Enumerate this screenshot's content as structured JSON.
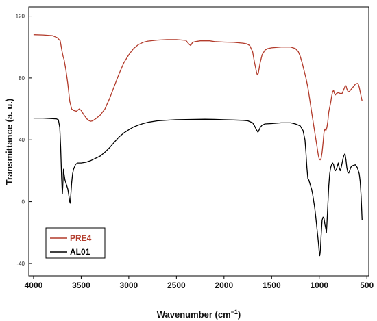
{
  "chart_data": {
    "type": "line",
    "title": "",
    "xlabel": "Wavenumber (cm",
    "xlabel_sup": "−1",
    "xlabel_close": ")",
    "ylabel": "Transmittance (a. u.)",
    "xlim": [
      4050,
      480
    ],
    "ylim": [
      -48,
      126
    ],
    "x_reversed": true,
    "x_ticks": [
      4000,
      3500,
      3000,
      2500,
      2000,
      1500,
      1000,
      500
    ],
    "x_tick_labels": [
      "4000",
      "3500",
      "3000",
      "2500",
      "2000",
      "1500",
      "1000",
      "500"
    ],
    "y_ticks": [
      -40,
      0,
      40,
      80,
      120
    ],
    "y_tick_labels": [
      "-40",
      "0",
      "40",
      "80",
      "120"
    ],
    "grid": false,
    "legend": {
      "position": "bottom-left"
    },
    "series": [
      {
        "name": "PRE4",
        "color": "#b23a2a",
        "points": [
          [
            4000,
            108
          ],
          [
            3900,
            107.8
          ],
          [
            3800,
            107.3
          ],
          [
            3750,
            106
          ],
          [
            3720,
            104
          ],
          [
            3700,
            97
          ],
          [
            3690,
            94
          ],
          [
            3680,
            92
          ],
          [
            3660,
            85
          ],
          [
            3640,
            76
          ],
          [
            3620,
            65
          ],
          [
            3600,
            60
          ],
          [
            3580,
            59
          ],
          [
            3550,
            58.5
          ],
          [
            3520,
            60
          ],
          [
            3500,
            59
          ],
          [
            3470,
            56
          ],
          [
            3440,
            53.5
          ],
          [
            3420,
            52.5
          ],
          [
            3400,
            52
          ],
          [
            3380,
            52.3
          ],
          [
            3350,
            53.5
          ],
          [
            3300,
            56
          ],
          [
            3250,
            60
          ],
          [
            3200,
            67
          ],
          [
            3150,
            75
          ],
          [
            3100,
            83
          ],
          [
            3050,
            90
          ],
          [
            3000,
            95
          ],
          [
            2950,
            99
          ],
          [
            2900,
            101.5
          ],
          [
            2850,
            103
          ],
          [
            2800,
            103.8
          ],
          [
            2700,
            104.5
          ],
          [
            2600,
            104.8
          ],
          [
            2500,
            104.8
          ],
          [
            2400,
            104.3
          ],
          [
            2370,
            102
          ],
          [
            2350,
            101
          ],
          [
            2330,
            103
          ],
          [
            2300,
            103.5
          ],
          [
            2250,
            104
          ],
          [
            2200,
            104
          ],
          [
            2150,
            104
          ],
          [
            2100,
            103.5
          ],
          [
            2000,
            103.2
          ],
          [
            1900,
            103
          ],
          [
            1800,
            102.5
          ],
          [
            1760,
            102
          ],
          [
            1730,
            101
          ],
          [
            1700,
            97
          ],
          [
            1680,
            90
          ],
          [
            1660,
            84
          ],
          [
            1650,
            82
          ],
          [
            1640,
            83
          ],
          [
            1620,
            90
          ],
          [
            1600,
            95
          ],
          [
            1570,
            98
          ],
          [
            1540,
            99
          ],
          [
            1500,
            99.5
          ],
          [
            1400,
            100
          ],
          [
            1300,
            100
          ],
          [
            1250,
            99
          ],
          [
            1220,
            97
          ],
          [
            1200,
            94
          ],
          [
            1180,
            90
          ],
          [
            1160,
            85
          ],
          [
            1140,
            80
          ],
          [
            1120,
            74
          ],
          [
            1100,
            66
          ],
          [
            1080,
            58
          ],
          [
            1060,
            50
          ],
          [
            1040,
            42
          ],
          [
            1020,
            34
          ],
          [
            1010,
            30
          ],
          [
            1000,
            27.5
          ],
          [
            990,
            27
          ],
          [
            980,
            28
          ],
          [
            970,
            32
          ],
          [
            960,
            38
          ],
          [
            950,
            45
          ],
          [
            940,
            47
          ],
          [
            930,
            46
          ],
          [
            920,
            48
          ],
          [
            910,
            52
          ],
          [
            900,
            58
          ],
          [
            880,
            64
          ],
          [
            870,
            68
          ],
          [
            860,
            71
          ],
          [
            850,
            72
          ],
          [
            840,
            70
          ],
          [
            830,
            69
          ],
          [
            820,
            70
          ],
          [
            800,
            70.5
          ],
          [
            780,
            70
          ],
          [
            760,
            70
          ],
          [
            750,
            71.5
          ],
          [
            740,
            73
          ],
          [
            730,
            74.5
          ],
          [
            720,
            75
          ],
          [
            710,
            73
          ],
          [
            700,
            71.5
          ],
          [
            690,
            71
          ],
          [
            680,
            71.5
          ],
          [
            660,
            73
          ],
          [
            640,
            74.5
          ],
          [
            620,
            76
          ],
          [
            600,
            76.5
          ],
          [
            590,
            76
          ],
          [
            580,
            74
          ],
          [
            570,
            71
          ],
          [
            560,
            68
          ],
          [
            550,
            65
          ]
        ]
      },
      {
        "name": "AL01",
        "color": "#000000",
        "points": [
          [
            4000,
            54
          ],
          [
            3900,
            54
          ],
          [
            3800,
            53.7
          ],
          [
            3760,
            53.5
          ],
          [
            3740,
            53
          ],
          [
            3725,
            48
          ],
          [
            3715,
            35
          ],
          [
            3705,
            15
          ],
          [
            3700,
            8
          ],
          [
            3697,
            5
          ],
          [
            3693,
            10
          ],
          [
            3688,
            18
          ],
          [
            3685,
            21
          ],
          [
            3680,
            18
          ],
          [
            3670,
            14
          ],
          [
            3660,
            12
          ],
          [
            3650,
            10
          ],
          [
            3640,
            8
          ],
          [
            3630,
            4
          ],
          [
            3620,
            0
          ],
          [
            3615,
            -1
          ],
          [
            3610,
            3
          ],
          [
            3600,
            12
          ],
          [
            3590,
            18
          ],
          [
            3580,
            21
          ],
          [
            3560,
            24
          ],
          [
            3540,
            25
          ],
          [
            3500,
            25
          ],
          [
            3450,
            25.5
          ],
          [
            3400,
            26.5
          ],
          [
            3350,
            28
          ],
          [
            3300,
            29.5
          ],
          [
            3250,
            32
          ],
          [
            3200,
            35
          ],
          [
            3150,
            38.5
          ],
          [
            3100,
            42
          ],
          [
            3050,
            44.5
          ],
          [
            3000,
            46.5
          ],
          [
            2950,
            48.3
          ],
          [
            2900,
            49.5
          ],
          [
            2850,
            50.5
          ],
          [
            2800,
            51.3
          ],
          [
            2700,
            52.3
          ],
          [
            2600,
            52.7
          ],
          [
            2500,
            53
          ],
          [
            2400,
            53.1
          ],
          [
            2300,
            53.2
          ],
          [
            2200,
            53.3
          ],
          [
            2100,
            53.2
          ],
          [
            2000,
            53
          ],
          [
            1900,
            52.8
          ],
          [
            1800,
            52.6
          ],
          [
            1750,
            52.3
          ],
          [
            1700,
            51
          ],
          [
            1680,
            49
          ],
          [
            1660,
            46.5
          ],
          [
            1645,
            45
          ],
          [
            1640,
            45.2
          ],
          [
            1620,
            48
          ],
          [
            1600,
            49.5
          ],
          [
            1570,
            50.3
          ],
          [
            1500,
            50.5
          ],
          [
            1400,
            51
          ],
          [
            1300,
            51
          ],
          [
            1250,
            50.3
          ],
          [
            1200,
            49
          ],
          [
            1170,
            46
          ],
          [
            1150,
            40
          ],
          [
            1140,
            32
          ],
          [
            1130,
            22
          ],
          [
            1120,
            15
          ],
          [
            1110,
            14
          ],
          [
            1100,
            12
          ],
          [
            1090,
            10
          ],
          [
            1080,
            8
          ],
          [
            1070,
            5
          ],
          [
            1060,
            1
          ],
          [
            1050,
            -3
          ],
          [
            1040,
            -8
          ],
          [
            1030,
            -14
          ],
          [
            1020,
            -20
          ],
          [
            1010,
            -26
          ],
          [
            1000,
            -33
          ],
          [
            995,
            -35
          ],
          [
            990,
            -33
          ],
          [
            985,
            -28
          ],
          [
            980,
            -22
          ],
          [
            975,
            -17
          ],
          [
            970,
            -12
          ],
          [
            960,
            -10
          ],
          [
            950,
            -11
          ],
          [
            940,
            -15
          ],
          [
            930,
            -18
          ],
          [
            925,
            -20
          ],
          [
            920,
            -15
          ],
          [
            910,
            -2
          ],
          [
            900,
            10
          ],
          [
            890,
            18
          ],
          [
            880,
            22
          ],
          [
            870,
            24
          ],
          [
            860,
            25
          ],
          [
            850,
            24
          ],
          [
            840,
            21
          ],
          [
            830,
            20
          ],
          [
            820,
            21
          ],
          [
            810,
            23
          ],
          [
            800,
            25
          ],
          [
            790,
            22
          ],
          [
            780,
            20
          ],
          [
            770,
            22
          ],
          [
            760,
            25
          ],
          [
            750,
            28
          ],
          [
            740,
            30
          ],
          [
            730,
            31
          ],
          [
            720,
            27
          ],
          [
            710,
            22
          ],
          [
            700,
            19
          ],
          [
            690,
            18.5
          ],
          [
            680,
            20
          ],
          [
            670,
            22
          ],
          [
            660,
            23
          ],
          [
            640,
            23.5
          ],
          [
            620,
            23.8
          ],
          [
            600,
            22
          ],
          [
            580,
            18
          ],
          [
            570,
            13
          ],
          [
            560,
            3
          ],
          [
            550,
            -12
          ]
        ]
      }
    ]
  }
}
